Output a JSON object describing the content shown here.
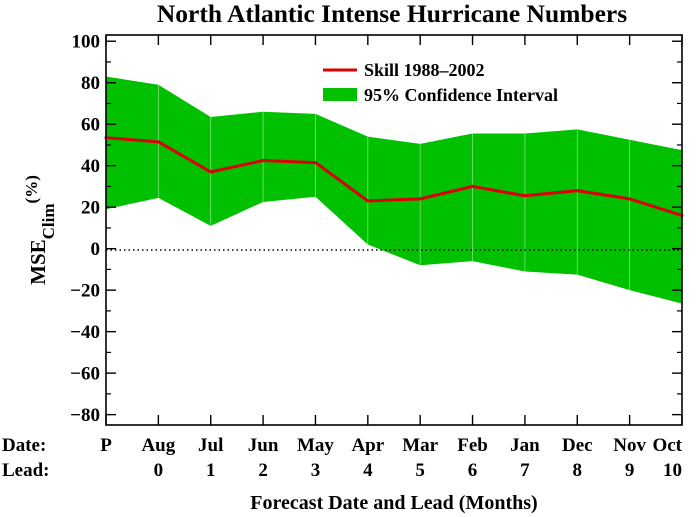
{
  "chart_data": {
    "type": "area",
    "title": "North Atlantic Intense Hurricane Numbers",
    "xlabel": "Forecast Date and Lead (Months)",
    "ylabel": "MSE",
    "ylabel_sub": "Clim",
    "ylabel_unit": "(%)",
    "row_labels": {
      "date": "Date:",
      "lead": "Lead:"
    },
    "categories": [
      "P",
      "Aug",
      "Jul",
      "Jun",
      "May",
      "Apr",
      "Mar",
      "Feb",
      "Jan",
      "Dec",
      "Nov",
      "Oct"
    ],
    "leads": [
      "",
      "0",
      "1",
      "2",
      "3",
      "4",
      "5",
      "6",
      "7",
      "8",
      "9",
      "10"
    ],
    "ylim": [
      -85,
      103
    ],
    "yticks": [
      -80,
      -60,
      -40,
      -20,
      0,
      20,
      40,
      60,
      80,
      100
    ],
    "ytick_labels": [
      "−80",
      "−60",
      "−40",
      "−20",
      "0",
      "20",
      "40",
      "60",
      "80",
      "100"
    ],
    "zero_line": {
      "value": 0,
      "style": "dotted"
    },
    "legend_position": "top-right",
    "series": [
      {
        "name": "Skill 1988–2002",
        "kind": "line",
        "color": "#dd0000",
        "values": [
          53.5,
          51.5,
          37,
          42.5,
          41.5,
          23,
          24,
          30,
          25.5,
          28,
          24,
          16
        ]
      },
      {
        "name": "95% Confidence Interval",
        "kind": "band",
        "color": "#00c000",
        "upper": [
          83,
          79,
          63.5,
          66,
          65,
          54,
          50.5,
          55.5,
          55.5,
          57.5,
          52.5,
          47.5
        ],
        "lower": [
          19,
          24.5,
          11,
          22.5,
          25,
          2,
          -8,
          -6,
          -11,
          -12.5,
          -20,
          -26.5
        ]
      }
    ]
  }
}
